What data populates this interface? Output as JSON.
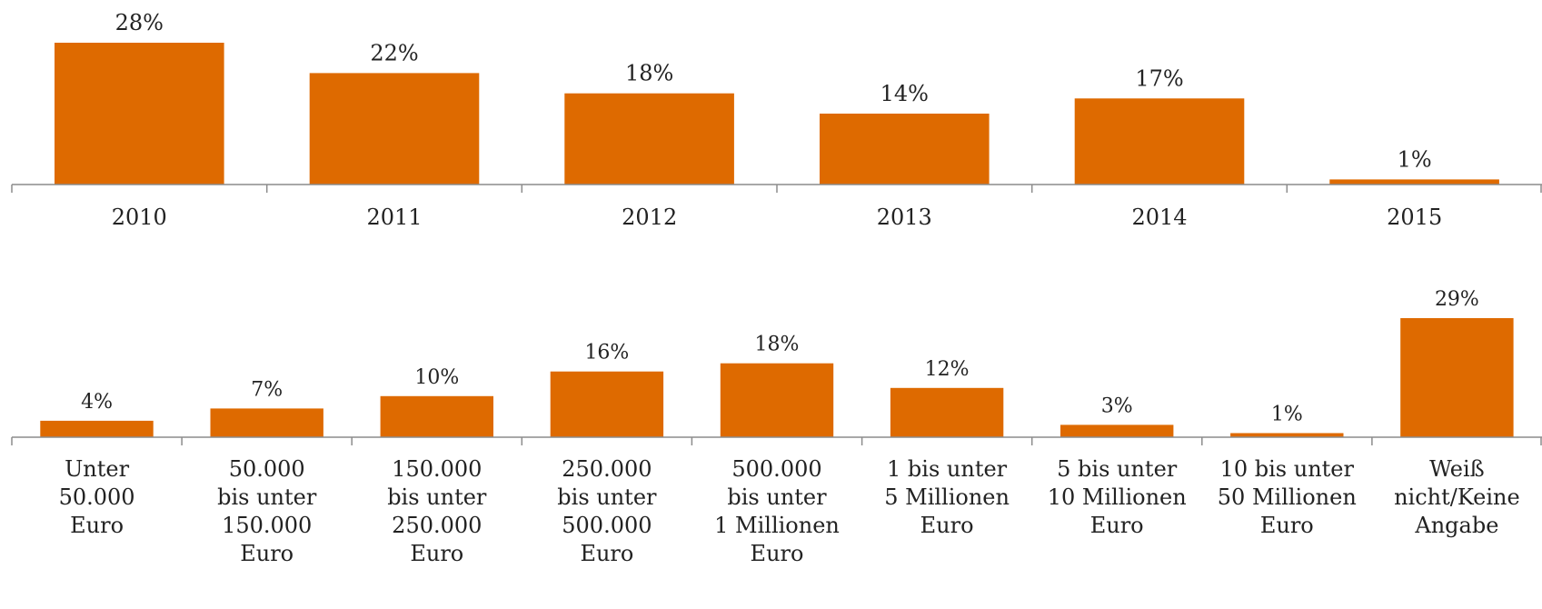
{
  "colors": {
    "bar": "#DE6A00",
    "axis": "#8c8c8c",
    "text": "#222222"
  },
  "chart_data": [
    {
      "type": "bar",
      "title": "",
      "xlabel": "",
      "ylabel": "",
      "ylim": [
        0,
        28
      ],
      "grid": false,
      "categories": [
        "2010",
        "2011",
        "2012",
        "2013",
        "2014",
        "2015"
      ],
      "series": [
        {
          "values": [
            28,
            22,
            18,
            14,
            17,
            1
          ],
          "labels": [
            "28%",
            "22%",
            "18%",
            "14%",
            "17%",
            "1%"
          ]
        }
      ]
    },
    {
      "type": "bar",
      "title": "",
      "xlabel": "",
      "ylabel": "",
      "ylim": [
        0,
        29
      ],
      "grid": false,
      "categories": [
        [
          "Unter",
          "50.000",
          "Euro"
        ],
        [
          "50.000",
          "bis unter",
          "150.000",
          "Euro"
        ],
        [
          "150.000",
          "bis unter",
          "250.000",
          "Euro"
        ],
        [
          "250.000",
          "bis unter",
          "500.000",
          "Euro"
        ],
        [
          "500.000",
          "bis unter",
          "1 Millionen",
          "Euro"
        ],
        [
          "1 bis unter",
          "5 Millionen",
          "Euro"
        ],
        [
          "5 bis unter",
          "10 Millionen",
          "Euro"
        ],
        [
          "10 bis unter",
          "50 Millionen",
          "Euro"
        ],
        [
          "Weiß",
          "nicht/Keine",
          "Angabe"
        ]
      ],
      "series": [
        {
          "values": [
            4,
            7,
            10,
            16,
            18,
            12,
            3,
            1,
            29
          ],
          "labels": [
            "4%",
            "7%",
            "10%",
            "16%",
            "18%",
            "12%",
            "3%",
            "1%",
            "29%"
          ]
        }
      ]
    }
  ]
}
